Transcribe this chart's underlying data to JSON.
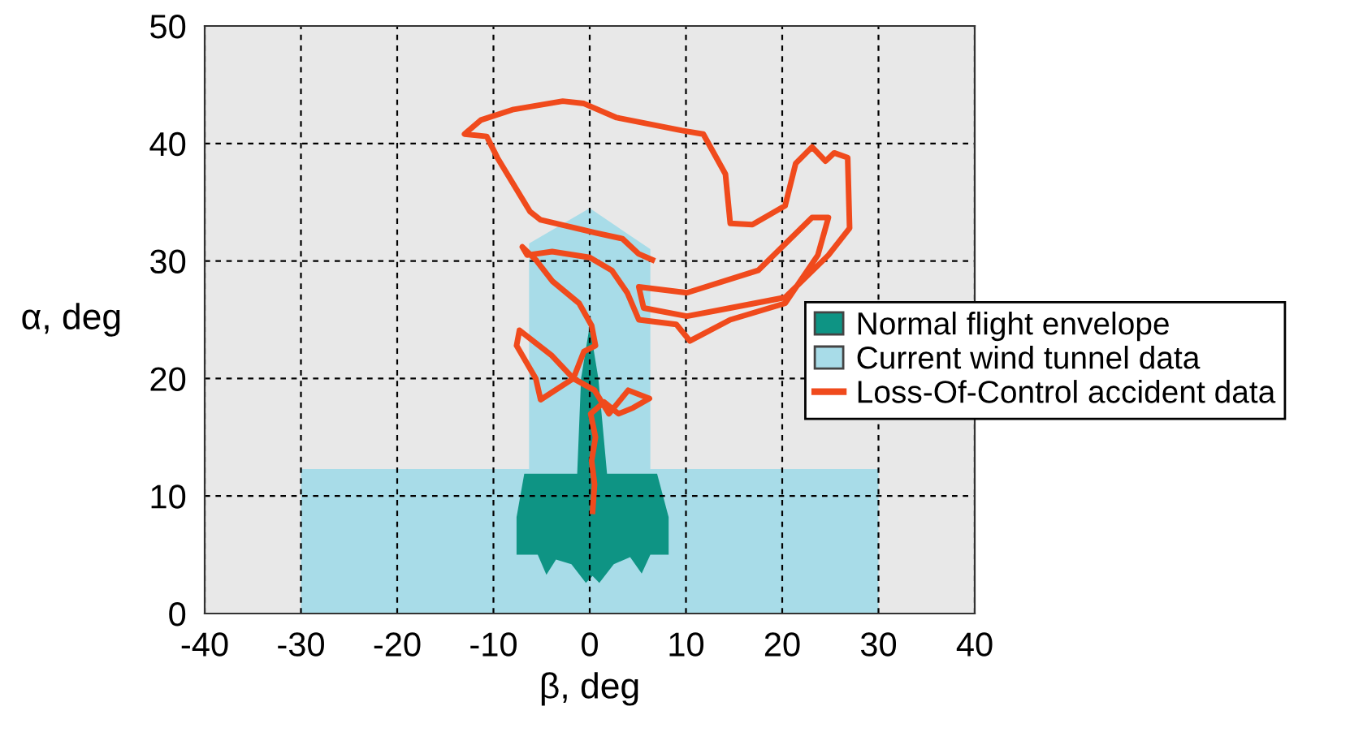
{
  "chart_data": {
    "type": "line",
    "xlabel": "β, deg",
    "ylabel": "α, deg",
    "xlim": [
      -40,
      40
    ],
    "ylim": [
      0,
      50
    ],
    "xticks": [
      -40,
      -30,
      -20,
      -10,
      0,
      10,
      20,
      30,
      40
    ],
    "yticks": [
      0,
      10,
      20,
      30,
      40,
      50
    ],
    "grid": true,
    "legend": "right",
    "line_style": "solid",
    "marker": "none",
    "series": [
      {
        "name": "Current wind tunnel data",
        "type": "area",
        "color": "#a8dce8",
        "x": [
          -30,
          30,
          30,
          6.3,
          6.3,
          0,
          -6.3,
          -6.3,
          -30
        ],
        "values": [
          0,
          0,
          12.3,
          12.3,
          31,
          34.5,
          31.5,
          12.3,
          12.3
        ]
      },
      {
        "name": "Normal flight envelope",
        "type": "area",
        "color": "#0e9484",
        "x": [
          -7.6,
          -7.6,
          -6.8,
          -1.3,
          -0.9,
          0,
          0.9,
          1.8,
          7.0,
          8.2,
          8.2,
          6.3,
          5.4,
          4.2,
          2.5,
          1.0,
          0.3,
          -0.4,
          -1.9,
          -3.5,
          -4.5,
          -5.4
        ],
        "values": [
          5,
          8.2,
          11.9,
          11.9,
          20,
          24.5,
          20,
          11.9,
          11.9,
          8.2,
          5,
          5,
          3.4,
          4.8,
          4.2,
          2.6,
          3.2,
          2.6,
          4.2,
          4.6,
          3.3,
          5
        ]
      },
      {
        "name": "Loss-Of-Control accident data",
        "color": "#f04a1c",
        "x": [
          0.3,
          0.5,
          0.2,
          0.6,
          0.1,
          1.5,
          3,
          4.5,
          6.2,
          4,
          2,
          0.5,
          -1.7,
          -5.1,
          -5.6,
          -7.6,
          -7.3,
          -4,
          -1.7,
          -0.6,
          0.6,
          0.2,
          -1.1,
          -3.9,
          -5.6,
          -7,
          -6.5,
          -3.9,
          0,
          2.3,
          3.9,
          5.1,
          9,
          10.4,
          14.6,
          20.3,
          23.7,
          24.8,
          23.1,
          17.5,
          10.1,
          5.1,
          5.6,
          10.1,
          14.6,
          20.3,
          24.8,
          27,
          26.8,
          25.4,
          24.5,
          23.1,
          21.4,
          20.3,
          16.9,
          14.6,
          14.1,
          11.8,
          9.6,
          2.8,
          -0.6,
          -2.8,
          -7.9,
          -11.3,
          -13,
          -10.7,
          -9.6,
          -6.2,
          -5.1,
          0.6,
          3.4,
          5.1,
          6.5
        ],
        "values": [
          8.7,
          11,
          13,
          15,
          17,
          18,
          17,
          17.5,
          18.3,
          19,
          17,
          19,
          20,
          18.2,
          20,
          22.8,
          24.1,
          22,
          20,
          22.3,
          22.8,
          24.5,
          26.4,
          28.3,
          30.1,
          31.2,
          30.5,
          30.8,
          30.3,
          29.2,
          27.3,
          25,
          24.6,
          23.2,
          25,
          26.4,
          30.5,
          33.7,
          33.7,
          29.2,
          27.3,
          27.8,
          26,
          25.3,
          26,
          26.9,
          30.5,
          32.8,
          38.8,
          39.2,
          38.5,
          39.7,
          38.3,
          34.7,
          33.1,
          33.2,
          37.4,
          40.8,
          41.1,
          42.2,
          43.4,
          43.6,
          42.9,
          42,
          40.8,
          40.6,
          38.8,
          34.2,
          33.5,
          32.4,
          31.9,
          30.6,
          30.1
        ]
      }
    ]
  }
}
